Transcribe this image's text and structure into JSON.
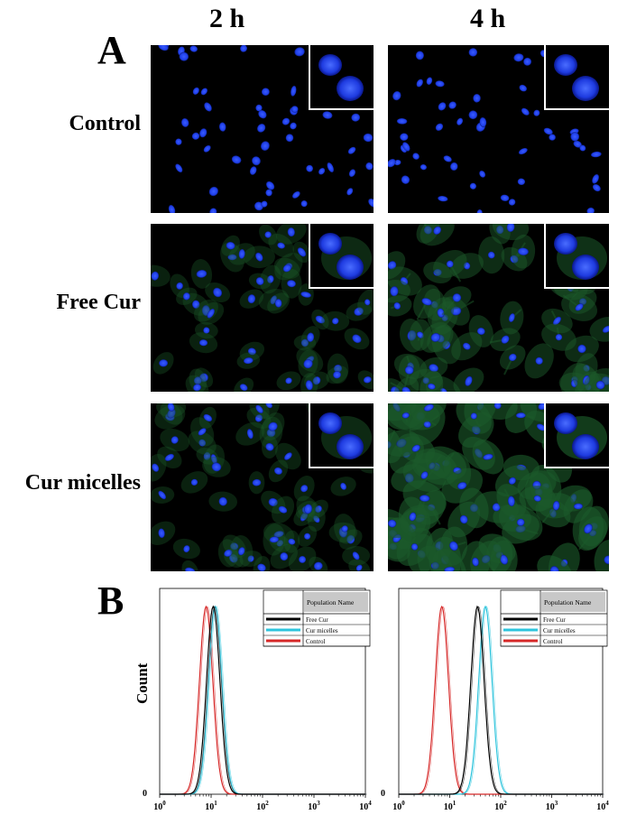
{
  "panel_a": {
    "letter": "A",
    "columns": [
      "2 h",
      "4 h"
    ],
    "rows": [
      "Control",
      "Free Cur",
      "Cur micelles"
    ]
  },
  "panel_b": {
    "letter": "B",
    "y_label": "Count",
    "zero_label": "0",
    "legend_header": "Population Name",
    "x_tick_labels": [
      {
        "base": "10",
        "exp": "0"
      },
      {
        "base": "10",
        "exp": "1"
      },
      {
        "base": "10",
        "exp": "2"
      },
      {
        "base": "10",
        "exp": "3"
      },
      {
        "base": "10",
        "exp": "4"
      }
    ]
  },
  "colors": {
    "nucleus_blue": "#1f3fe8",
    "cytoplasm_green": "#1c5a2a",
    "free_cur": "#000000",
    "cur_micelles": "#2ec4dc",
    "control": "#d62828",
    "legend_header_bg": "#c8c8c8"
  },
  "chart_data": [
    {
      "type": "area",
      "x_scale": "log",
      "xlim": [
        1,
        10000
      ],
      "series": [
        {
          "name": "Free Cur",
          "color": "#000000",
          "peak_x": 11
        },
        {
          "name": "Cur micelles",
          "color": "#2ec4dc",
          "peak_x": 12
        },
        {
          "name": "Control",
          "color": "#d62828",
          "peak_x": 8
        }
      ],
      "legend_position": "top-right"
    },
    {
      "type": "area",
      "x_scale": "log",
      "xlim": [
        1,
        10000
      ],
      "series": [
        {
          "name": "Free Cur",
          "color": "#000000",
          "peak_x": 35
        },
        {
          "name": "Cur micelles",
          "color": "#2ec4dc",
          "peak_x": 50
        },
        {
          "name": "Control",
          "color": "#d62828",
          "peak_x": 7
        }
      ],
      "legend_position": "top-right"
    }
  ]
}
